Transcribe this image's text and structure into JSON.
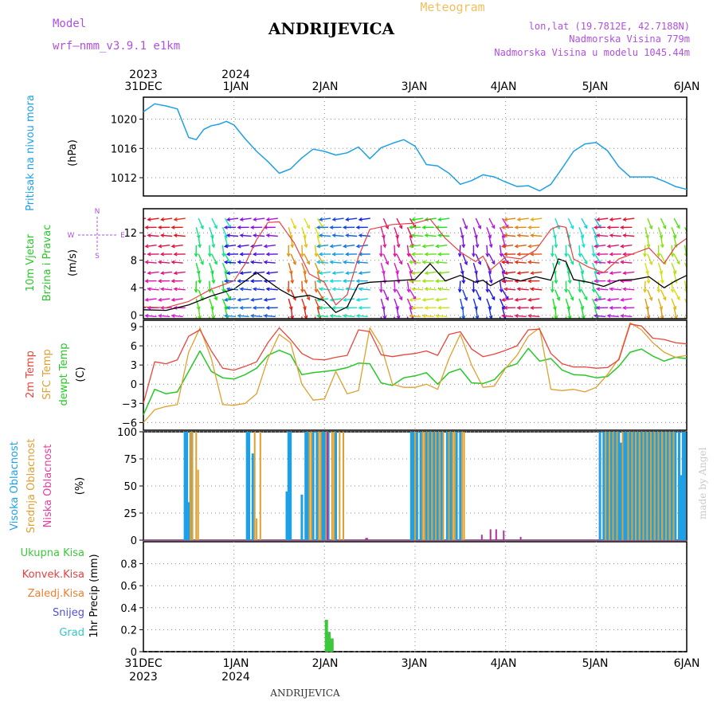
{
  "header": {
    "model_label": "Model",
    "model_name": "wrf–nmm_v3.9.1  e1km",
    "station_title": "ANDRIJEVICA",
    "meteogram_label": "Meteogram",
    "lonlat": "lon,lat (19.7812E, 42.7188N)",
    "elevation": "Nadmorska Visina 779m",
    "model_elevation": "Nadmorska Visina u modelu 1045.44m",
    "footer_station": "ANDRIJEVICA",
    "credit": "made by Angel"
  },
  "time_axis": {
    "top_years": [
      "2023",
      "2024"
    ],
    "bottom_years": [
      "2023",
      "2024"
    ],
    "days": [
      "31DEC",
      "1JAN",
      "2JAN",
      "3JAN",
      "4JAN",
      "5JAN",
      "6JAN"
    ]
  },
  "colors": {
    "pressure": "#1ea0e6",
    "temp2m": "#e8463c",
    "sfc_temp": "#e0a030",
    "dewpoint": "#28c828",
    "cloud_high": "#1ea0e6",
    "cloud_mid": "#e0a030",
    "cloud_low": "#b030a0",
    "precip_total": "#3cc83c",
    "precip_conv": "#e84040",
    "precip_frozen": "#f08030",
    "precip_snow": "#5050e0",
    "precip_hail": "#30c8c8",
    "wind_speed": "#000000",
    "wind_gust": "#e84040",
    "label_purple": "#b050e0",
    "label_gold": "#f0c060"
  },
  "panels": {
    "pressure": {
      "ylabel": "Pritisak na nivou mora",
      "unit": "(hPa)",
      "ticks": [
        "1012",
        "1016",
        "1020"
      ]
    },
    "wind": {
      "ylabel1": "10m  Vjetar",
      "ylabel2": "Brzina i Pravac",
      "unit": "(m/s)",
      "ticks": [
        "0",
        "4",
        "8",
        "12"
      ],
      "compass_n": "N",
      "compass_s": "S",
      "compass_e": "E",
      "compass_w": "W"
    },
    "temp": {
      "ylabel1": "2m Temp",
      "ylabel2": "SFC Temp",
      "ylabel3": "dewpt Temp",
      "unit": "(C)",
      "ticks": [
        "−6",
        "−3",
        "0",
        "3",
        "6",
        "9"
      ]
    },
    "cloud": {
      "ylabel1": "Visoka Oblacnost",
      "ylabel2": "Srednja Oblacnost",
      "ylabel3": "Niska Oblacnost",
      "unit": "(%)",
      "ticks": [
        "0",
        "25",
        "50",
        "75",
        "100"
      ]
    },
    "precip": {
      "unit": "1hr Precip (mm)",
      "ticks": [
        "0",
        "0.2",
        "0.4",
        "0.6",
        "0.8"
      ],
      "legend": [
        "Ukupna Kisa",
        "Konvek.Kisa",
        "Zaledj.Kisa",
        "Snijeg",
        "Grad"
      ]
    }
  },
  "chart_data": [
    {
      "type": "line",
      "name": "pressure",
      "ylim": [
        1009.5,
        1023
      ],
      "xlim": [
        0,
        144
      ],
      "x": [
        0,
        3,
        6,
        9,
        12,
        14,
        16,
        18,
        20,
        22,
        24,
        27,
        30,
        33,
        36,
        39,
        42,
        45,
        48,
        51,
        54,
        57,
        60,
        63,
        66,
        69,
        72,
        75,
        78,
        81,
        84,
        87,
        90,
        93,
        96,
        99,
        102,
        105,
        108,
        111,
        114,
        117,
        120,
        123,
        126,
        129,
        132,
        135,
        138,
        141,
        144
      ],
      "values": [
        1021,
        1022.1,
        1021.8,
        1021.4,
        1017.5,
        1017.2,
        1018.6,
        1019.1,
        1019.3,
        1019.7,
        1019.2,
        1017.3,
        1015.6,
        1014.2,
        1012.6,
        1013.2,
        1014.7,
        1015.9,
        1015.6,
        1015.1,
        1015.4,
        1016.2,
        1014.6,
        1016.1,
        1016.7,
        1017.2,
        1016.3,
        1013.8,
        1013.6,
        1012.6,
        1011.1,
        1011.6,
        1012.4,
        1012.1,
        1011.4,
        1010.8,
        1010.9,
        1010.2,
        1011.1,
        1013.3,
        1015.6,
        1016.6,
        1016.8,
        1015.7,
        1013.5,
        1012.1,
        1012.1,
        1012.1,
        1011.5,
        1010.8,
        1010.4
      ]
    },
    {
      "type": "line",
      "name": "wind",
      "ylim": [
        -0.5,
        15.5
      ],
      "xlim": [
        0,
        144
      ],
      "x": [
        0,
        6,
        12,
        18,
        24,
        27,
        30,
        33,
        36,
        40,
        44,
        48,
        51,
        54,
        57,
        60,
        66,
        72,
        76,
        80,
        84,
        88,
        90,
        92,
        96,
        100,
        104,
        108,
        110,
        112,
        114,
        118,
        122,
        126,
        130,
        134,
        138,
        141,
        144
      ],
      "speed": [
        0.8,
        0.7,
        1.5,
        2.8,
        3.8,
        5.0,
        6.2,
        5.0,
        3.8,
        2.6,
        2.9,
        2.1,
        0.4,
        1.2,
        4.5,
        4.8,
        5.0,
        5.2,
        7.5,
        5.0,
        5.8,
        4.8,
        5.1,
        4.3,
        5.5,
        5.0,
        5.6,
        5.1,
        8.2,
        7.8,
        5.2,
        4.8,
        4.2,
        5.1,
        5.2,
        5.6,
        4.0,
        5.0,
        5.8
      ],
      "gust": [
        1.2,
        1.1,
        2.0,
        3.8,
        5.0,
        7.5,
        11.0,
        13.5,
        13.6,
        10.5,
        6.0,
        4.8,
        1.5,
        3.0,
        8.5,
        12.5,
        13.2,
        13.4,
        14.0,
        11.2,
        9.2,
        7.8,
        8.6,
        6.6,
        8.5,
        8.2,
        9.5,
        12.5,
        13.0,
        12.8,
        8.2,
        7.0,
        6.2,
        8.2,
        9.0,
        9.8,
        7.5,
        10.0,
        11.2
      ]
    },
    {
      "type": "line",
      "name": "temperature",
      "ylim": [
        -7.2,
        10
      ],
      "xlim": [
        0,
        144
      ],
      "x": [
        0,
        3,
        6,
        9,
        12,
        15,
        18,
        21,
        24,
        27,
        30,
        33,
        36,
        39,
        42,
        45,
        48,
        51,
        54,
        57,
        60,
        63,
        66,
        69,
        72,
        75,
        78,
        81,
        84,
        87,
        90,
        93,
        96,
        99,
        102,
        105,
        108,
        111,
        114,
        117,
        120,
        123,
        126,
        129,
        132,
        135,
        138,
        141,
        144
      ],
      "temp2m": [
        -3,
        3.5,
        3.2,
        3.8,
        7.5,
        8.5,
        5.2,
        2.5,
        2.2,
        2.8,
        3.5,
        6.5,
        8.8,
        7.0,
        4.8,
        3.9,
        3.8,
        4.2,
        4.5,
        8.5,
        8.2,
        4.6,
        4.3,
        4.6,
        4.8,
        5.2,
        4.5,
        7.8,
        8.2,
        5.5,
        4.3,
        4.7,
        5.3,
        6.0,
        8.5,
        8.6,
        4.8,
        3.2,
        2.7,
        2.7,
        2.5,
        2.6,
        3.8,
        9.4,
        9.1,
        7.2,
        7.0,
        6.5,
        6.3
      ],
      "sfc": [
        -6.0,
        -4.0,
        -3.5,
        -3.2,
        5.0,
        8.8,
        4.0,
        -3.2,
        -3.3,
        -3.0,
        -1.5,
        4.0,
        7.8,
        6.5,
        0.0,
        -2.5,
        -2.3,
        2.0,
        -1.5,
        -1.0,
        8.8,
        6.0,
        0.0,
        -0.5,
        -0.5,
        0.0,
        -0.8,
        4.0,
        7.8,
        3.0,
        -0.5,
        -0.3,
        2.5,
        4.5,
        7.5,
        8.8,
        -0.8,
        -1.0,
        -0.8,
        -1.2,
        -0.5,
        1.5,
        4.0,
        9.6,
        8.5,
        6.5,
        5.0,
        4.2,
        4.5
      ],
      "dewpoint": [
        -4.8,
        -0.8,
        -1.5,
        -1.2,
        2.0,
        5.2,
        2.0,
        1.0,
        0.8,
        1.5,
        2.5,
        4.5,
        5.3,
        4.6,
        1.5,
        1.8,
        2.0,
        2.2,
        2.6,
        3.3,
        3.2,
        0.2,
        -0.2,
        1.0,
        1.3,
        1.8,
        0.0,
        1.8,
        2.4,
        0.2,
        0.1,
        0.7,
        2.6,
        3.2,
        5.6,
        3.6,
        4.0,
        2.2,
        1.5,
        1.4,
        1.0,
        1.2,
        2.8,
        5.0,
        5.5,
        4.4,
        3.6,
        4.2,
        4.0
      ]
    },
    {
      "type": "bar",
      "name": "cloud_cover",
      "ylim": [
        0,
        100
      ],
      "xlim": [
        0,
        144
      ],
      "high": [
        [
          11,
          100
        ],
        [
          11.5,
          100
        ],
        [
          12,
          35
        ],
        [
          12.5,
          100
        ],
        [
          27.5,
          100
        ],
        [
          28,
          100
        ],
        [
          29,
          80
        ],
        [
          38,
          45
        ],
        [
          38.5,
          100
        ],
        [
          39,
          100
        ],
        [
          42,
          42
        ],
        [
          43,
          100
        ],
        [
          43.5,
          100
        ],
        [
          45,
          100
        ],
        [
          46,
          100
        ],
        [
          47.5,
          100
        ],
        [
          48,
          100
        ],
        [
          49,
          100
        ],
        [
          51,
          100
        ],
        [
          71,
          100
        ],
        [
          71.5,
          100
        ],
        [
          72.5,
          100
        ],
        [
          73.5,
          100
        ],
        [
          75,
          100
        ],
        [
          76,
          100
        ],
        [
          77,
          100
        ],
        [
          78,
          100
        ],
        [
          79,
          100
        ],
        [
          80.5,
          100
        ],
        [
          81.5,
          100
        ],
        [
          83,
          100
        ],
        [
          84,
          100
        ],
        [
          121,
          100
        ],
        [
          122,
          100
        ],
        [
          123,
          100
        ],
        [
          124,
          100
        ],
        [
          125,
          100
        ],
        [
          126,
          100
        ],
        [
          126.5,
          90
        ],
        [
          127.5,
          100
        ],
        [
          128,
          100
        ],
        [
          129,
          100
        ],
        [
          130,
          100
        ],
        [
          131,
          100
        ],
        [
          132,
          100
        ],
        [
          133,
          100
        ],
        [
          134,
          100
        ],
        [
          135,
          100
        ],
        [
          136,
          100
        ],
        [
          137,
          100
        ],
        [
          138,
          100
        ],
        [
          139,
          100
        ],
        [
          140,
          100
        ],
        [
          141,
          100
        ],
        [
          142,
          100
        ],
        [
          142.5,
          60
        ],
        [
          143,
          100
        ],
        [
          143.5,
          100
        ]
      ],
      "mid": [
        [
          12.5,
          100
        ],
        [
          13,
          100
        ],
        [
          14,
          100
        ],
        [
          14.5,
          65
        ],
        [
          29.5,
          100
        ],
        [
          30,
          20
        ],
        [
          31,
          100
        ],
        [
          44,
          100
        ],
        [
          44.5,
          100
        ],
        [
          46.5,
          100
        ],
        [
          47,
          100
        ],
        [
          48.5,
          100
        ],
        [
          50,
          100
        ],
        [
          50.5,
          100
        ],
        [
          52,
          100
        ],
        [
          53,
          100
        ],
        [
          72,
          100
        ],
        [
          74,
          100
        ],
        [
          74.5,
          100
        ],
        [
          75.5,
          100
        ],
        [
          76.5,
          100
        ],
        [
          77.5,
          100
        ],
        [
          78.5,
          100
        ],
        [
          79.5,
          100
        ],
        [
          81,
          100
        ],
        [
          82,
          100
        ],
        [
          82.5,
          100
        ],
        [
          84.5,
          100
        ],
        [
          85,
          100
        ],
        [
          122.5,
          100
        ],
        [
          123.5,
          100
        ],
        [
          124.5,
          100
        ],
        [
          125.5,
          100
        ],
        [
          127,
          100
        ],
        [
          128.5,
          100
        ],
        [
          129.5,
          100
        ],
        [
          130.5,
          100
        ],
        [
          131.5,
          100
        ],
        [
          132.5,
          100
        ],
        [
          133.5,
          100
        ],
        [
          134.5,
          100
        ],
        [
          135.5,
          100
        ],
        [
          136.5,
          100
        ],
        [
          137.5,
          100
        ],
        [
          138.5,
          100
        ],
        [
          139.5,
          100
        ],
        [
          140.5,
          100
        ]
      ],
      "low": [
        [
          48.8,
          100
        ],
        [
          59,
          2
        ],
        [
          59.3,
          2
        ],
        [
          89.7,
          5
        ],
        [
          92,
          10
        ],
        [
          93.5,
          10
        ],
        [
          95.5,
          9
        ],
        [
          100,
          3
        ]
      ]
    },
    {
      "type": "bar",
      "name": "precipitation_1hr",
      "ylim": [
        0,
        1.0
      ],
      "xlim": [
        0,
        144
      ],
      "total": [
        [
          48.5,
          0.29
        ],
        [
          49.2,
          0.18
        ],
        [
          50,
          0.12
        ]
      ],
      "convective": [],
      "frozen": [],
      "snow": [],
      "hail": []
    }
  ]
}
